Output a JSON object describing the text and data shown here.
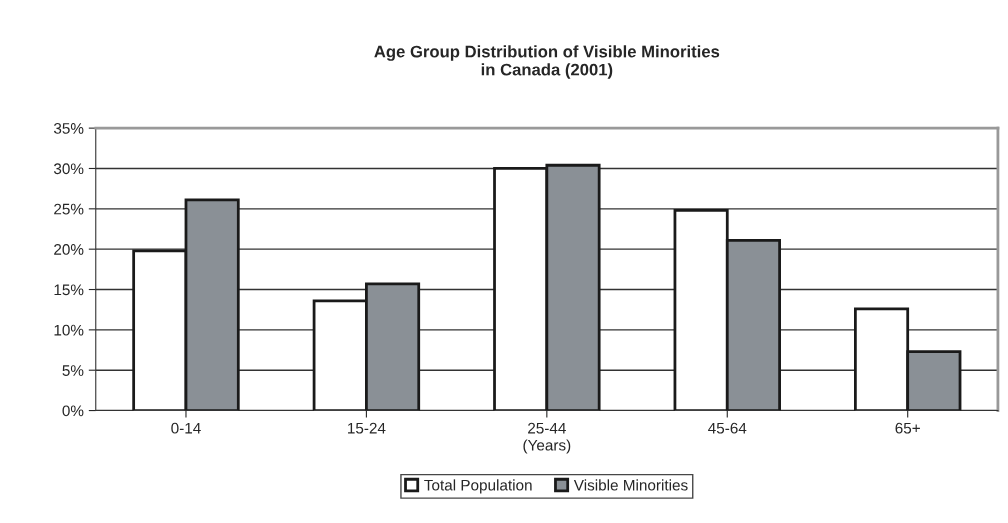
{
  "chart_data": {
    "type": "bar",
    "title": "Age Group Distribution of Visible Minorities\nin Canada (2001)",
    "xlabel": "(Years)",
    "categories": [
      "0-14",
      "15-24",
      "25-44",
      "45-64",
      "65+"
    ],
    "series": [
      {
        "name": "Total Population",
        "color": "#ffffff",
        "values": [
          19.8,
          13.6,
          30.0,
          24.8,
          12.6
        ]
      },
      {
        "name": "Visible Minorities",
        "color": "#8a9096",
        "values": [
          26.1,
          15.7,
          30.4,
          21.1,
          7.3
        ]
      }
    ],
    "ylim": [
      0,
      35
    ],
    "yticks": [
      {
        "value": 0,
        "label": "0%"
      },
      {
        "value": 5,
        "label": "5%"
      },
      {
        "value": 10,
        "label": "10%"
      },
      {
        "value": 15,
        "label": "15%"
      },
      {
        "value": 20,
        "label": "20%"
      },
      {
        "value": 25,
        "label": "25%"
      },
      {
        "value": 30,
        "label": "30%"
      },
      {
        "value": 35,
        "label": "35%"
      }
    ],
    "grid": "y",
    "legend": "bottom"
  }
}
